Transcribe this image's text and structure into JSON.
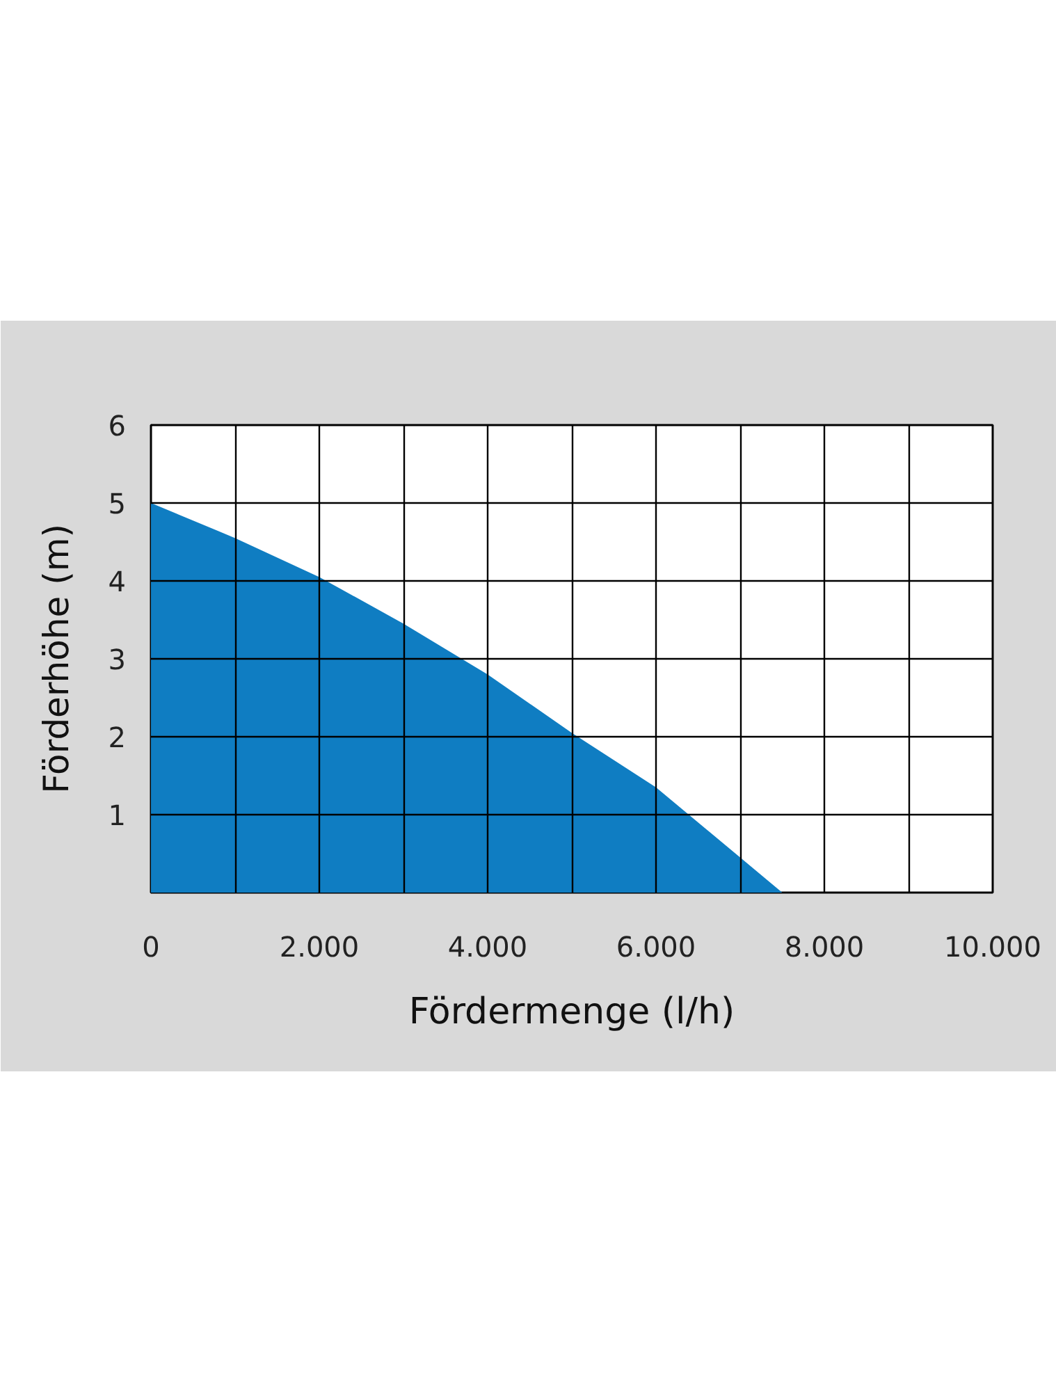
{
  "chart_data": {
    "type": "area",
    "xlabel": "Fördermenge (l/h)",
    "ylabel": "Förderhöhe (m)",
    "x": [
      0,
      1000,
      2000,
      3000,
      4000,
      5000,
      6000,
      7000,
      7500
    ],
    "series": [
      {
        "color": "#0f7dc2",
        "values": [
          5.0,
          4.55,
          4.05,
          3.45,
          2.8,
          2.05,
          1.35,
          0.45,
          0
        ]
      }
    ],
    "xlim": [
      0,
      10000
    ],
    "ylim": [
      0,
      6
    ],
    "xticks": [
      0,
      {
        "value": 1000,
        "label": null
      },
      {
        "value": 2000,
        "label": "2.000"
      },
      {
        "value": 3000,
        "label": null
      },
      {
        "value": 4000,
        "label": "4.000"
      },
      {
        "value": 5000,
        "label": null
      },
      {
        "value": 6000,
        "label": "6.000"
      },
      {
        "value": 7000,
        "label": null
      },
      {
        "value": 8000,
        "label": "8.000"
      },
      {
        "value": 9000,
        "label": null
      },
      {
        "value": 10000,
        "label": "10.000"
      }
    ],
    "yticks": [
      {
        "value": 0,
        "label": null
      },
      1,
      2,
      3,
      4,
      5,
      6
    ],
    "grid": true
  }
}
